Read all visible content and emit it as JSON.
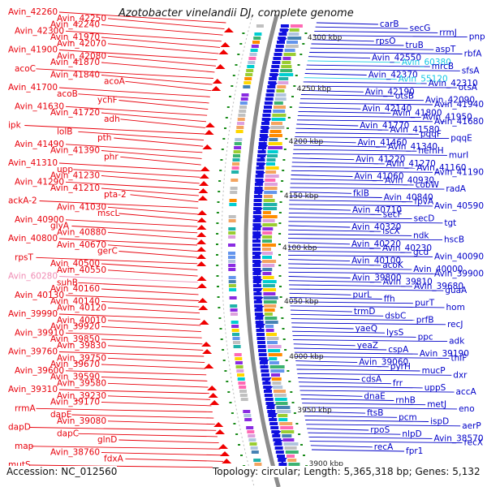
{
  "title": "Azotobacter vinelandii DJ, complete genome",
  "accession_label": "Accession: NC_012560",
  "topology_label": "Topology: circular; Length: 5,365,318 bp; Genes: 5,132",
  "colors": {
    "left_gene_label": "#e8000b",
    "right_gene_label": "#0000c8",
    "highlight_pink": "#f08cb4",
    "highlight_cyan": "#16c8e6",
    "feature_red": "#f00000",
    "feature_blue": "#1010e0",
    "backbone": "#8c8c8c",
    "tick_green": "#1a8c1a"
  },
  "scale_labels": [
    "4300 kbp",
    "4250 kbp",
    "4200 kbp",
    "4150 kbp",
    "4100 kbp",
    "4050 kbp",
    "4000 kbp",
    "3950 kbp",
    "3900 kbp"
  ],
  "left_labels": [
    {
      "text": "Avin_42260",
      "color": "red"
    },
    {
      "text": "Avin_42250",
      "color": "red"
    },
    {
      "text": "Avin_42240",
      "color": "red"
    },
    {
      "text": "Avin_42300",
      "color": "red"
    },
    {
      "text": "Avin_41970",
      "color": "red"
    },
    {
      "text": "Avin_42070",
      "color": "red"
    },
    {
      "text": "Avin_41900",
      "color": "red"
    },
    {
      "text": "Avin_42080",
      "color": "red"
    },
    {
      "text": "Avin_41870",
      "color": "red"
    },
    {
      "text": "acoC",
      "color": "red"
    },
    {
      "text": "Avin_41840",
      "color": "red"
    },
    {
      "text": "acoA",
      "color": "red"
    },
    {
      "text": "Avin_41700",
      "color": "red"
    },
    {
      "text": "acoB",
      "color": "red"
    },
    {
      "text": "ychF",
      "color": "red"
    },
    {
      "text": "Avin_41630",
      "color": "red"
    },
    {
      "text": "Avin_41720",
      "color": "red"
    },
    {
      "text": "adh",
      "color": "red"
    },
    {
      "text": "ipk",
      "color": "red"
    },
    {
      "text": "lolB",
      "color": "red"
    },
    {
      "text": "pth",
      "color": "red"
    },
    {
      "text": "Avin_41490",
      "color": "red"
    },
    {
      "text": "Avin_41390",
      "color": "red"
    },
    {
      "text": "phr",
      "color": "red"
    },
    {
      "text": "Avin_41310",
      "color": "red"
    },
    {
      "text": "upp",
      "color": "red"
    },
    {
      "text": "Avin_41230",
      "color": "red"
    },
    {
      "text": "Avin_41290",
      "color": "red"
    },
    {
      "text": "Avin_41210",
      "color": "red"
    },
    {
      "text": "pta-2",
      "color": "red"
    },
    {
      "text": "ackA-2",
      "color": "red"
    },
    {
      "text": "Avin_41030",
      "color": "red"
    },
    {
      "text": "mscL",
      "color": "red"
    },
    {
      "text": "Avin_40900",
      "color": "red"
    },
    {
      "text": "glyA",
      "color": "red"
    },
    {
      "text": "Avin_40880",
      "color": "red"
    },
    {
      "text": "Avin_40800",
      "color": "red"
    },
    {
      "text": "Avin_40670",
      "color": "red"
    },
    {
      "text": "gerC",
      "color": "red"
    },
    {
      "text": "rpsT",
      "color": "red"
    },
    {
      "text": "Avin_40500",
      "color": "red"
    },
    {
      "text": "Avin_40550",
      "color": "red"
    },
    {
      "text": "Avin_60280",
      "color": "pink"
    },
    {
      "text": "suhB",
      "color": "red"
    },
    {
      "text": "Avin_40160",
      "color": "red"
    },
    {
      "text": "Avin_40130",
      "color": "red"
    },
    {
      "text": "Avin_40140",
      "color": "red"
    },
    {
      "text": "Avin_40120",
      "color": "red"
    },
    {
      "text": "Avin_39990",
      "color": "red"
    },
    {
      "text": "Avin_40010",
      "color": "red"
    },
    {
      "text": "Avin_39920",
      "color": "red"
    },
    {
      "text": "Avin_39910",
      "color": "red"
    },
    {
      "text": "Avin_39850",
      "color": "red"
    },
    {
      "text": "Avin_39830",
      "color": "red"
    },
    {
      "text": "Avin_39760",
      "color": "red"
    },
    {
      "text": "Avin_39750",
      "color": "red"
    },
    {
      "text": "Avin_39670",
      "color": "red"
    },
    {
      "text": "Avin_39600",
      "color": "red"
    },
    {
      "text": "Avin_39590",
      "color": "red"
    },
    {
      "text": "Avin_39580",
      "color": "red"
    },
    {
      "text": "Avin_39310",
      "color": "red"
    },
    {
      "text": "Avin_39230",
      "color": "red"
    },
    {
      "text": "Avin_39170",
      "color": "red"
    },
    {
      "text": "rrmA",
      "color": "red"
    },
    {
      "text": "dapE",
      "color": "red"
    },
    {
      "text": "Avin_39080",
      "color": "red"
    },
    {
      "text": "dapD",
      "color": "red"
    },
    {
      "text": "dapC",
      "color": "red"
    },
    {
      "text": "glnD",
      "color": "red"
    },
    {
      "text": "map",
      "color": "red"
    },
    {
      "text": "Avin_38760",
      "color": "red"
    },
    {
      "text": "fdxA",
      "color": "red"
    },
    {
      "text": "mutS",
      "color": "red"
    }
  ],
  "right_labels": [
    {
      "text": "carB",
      "color": "blue"
    },
    {
      "text": "secG",
      "color": "blue"
    },
    {
      "text": "rrmJ",
      "color": "blue"
    },
    {
      "text": "pnp",
      "color": "blue"
    },
    {
      "text": "rpsO",
      "color": "blue"
    },
    {
      "text": "truB",
      "color": "blue"
    },
    {
      "text": "aspT",
      "color": "blue"
    },
    {
      "text": "rbfA",
      "color": "blue"
    },
    {
      "text": "Avin_42550",
      "color": "blue"
    },
    {
      "text": "Avin_60380",
      "color": "cyan"
    },
    {
      "text": "mrcB",
      "color": "blue"
    },
    {
      "text": "sfsA",
      "color": "blue"
    },
    {
      "text": "Avin_42370",
      "color": "blue"
    },
    {
      "text": "Avin_55120",
      "color": "cyan"
    },
    {
      "text": "Avin_42310",
      "color": "blue"
    },
    {
      "text": "otsA",
      "color": "blue"
    },
    {
      "text": "Avin_42190",
      "color": "blue"
    },
    {
      "text": "otsB",
      "color": "blue"
    },
    {
      "text": "Avin_42090",
      "color": "blue"
    },
    {
      "text": "Avin_41940",
      "color": "blue"
    },
    {
      "text": "Avin_42140",
      "color": "blue"
    },
    {
      "text": "Avin_41800",
      "color": "blue"
    },
    {
      "text": "Avin_41950",
      "color": "blue"
    },
    {
      "text": "Avin_41680",
      "color": "blue"
    },
    {
      "text": "Avin_41770",
      "color": "blue"
    },
    {
      "text": "Avin_41580",
      "color": "blue"
    },
    {
      "text": "pqqF",
      "color": "blue"
    },
    {
      "text": "pqqE",
      "color": "blue"
    },
    {
      "text": "Avin_41460",
      "color": "blue"
    },
    {
      "text": "Avin_41340",
      "color": "blue"
    },
    {
      "text": "hemH",
      "color": "blue"
    },
    {
      "text": "murI",
      "color": "blue"
    },
    {
      "text": "Avin_41220",
      "color": "blue"
    },
    {
      "text": "Avin_41270",
      "color": "blue"
    },
    {
      "text": "Avin_41160",
      "color": "blue"
    },
    {
      "text": "Avin_41190",
      "color": "blue"
    },
    {
      "text": "Avin_41060",
      "color": "blue"
    },
    {
      "text": "Avin_40930",
      "color": "blue"
    },
    {
      "text": "cobW",
      "color": "blue"
    },
    {
      "text": "radA",
      "color": "blue"
    },
    {
      "text": "fklB",
      "color": "blue"
    },
    {
      "text": "Avin_40840",
      "color": "blue"
    },
    {
      "text": "fpvA",
      "color": "blue"
    },
    {
      "text": "Avin_40590",
      "color": "blue"
    },
    {
      "text": "Avin_40710",
      "color": "blue"
    },
    {
      "text": "secF",
      "color": "blue"
    },
    {
      "text": "secD",
      "color": "blue"
    },
    {
      "text": "tgt",
      "color": "blue"
    },
    {
      "text": "Avin_40320",
      "color": "blue"
    },
    {
      "text": "iscX",
      "color": "blue"
    },
    {
      "text": "ndk",
      "color": "blue"
    },
    {
      "text": "hscB",
      "color": "blue"
    },
    {
      "text": "Avin_40220",
      "color": "blue"
    },
    {
      "text": "Avin_40230",
      "color": "blue"
    },
    {
      "text": "gcd",
      "color": "blue"
    },
    {
      "text": "Avin_40090",
      "color": "blue"
    },
    {
      "text": "Avin_40100",
      "color": "blue"
    },
    {
      "text": "acoK",
      "color": "blue"
    },
    {
      "text": "Avin_40000",
      "color": "blue"
    },
    {
      "text": "Avin_39900",
      "color": "blue"
    },
    {
      "text": "Avin_39800",
      "color": "blue"
    },
    {
      "text": "Avin_39810",
      "color": "blue"
    },
    {
      "text": "Avin_39680",
      "color": "blue"
    },
    {
      "text": "guaA",
      "color": "blue"
    },
    {
      "text": "purL",
      "color": "blue"
    },
    {
      "text": "ffh",
      "color": "blue"
    },
    {
      "text": "purT",
      "color": "blue"
    },
    {
      "text": "hom",
      "color": "blue"
    },
    {
      "text": "trmD",
      "color": "blue"
    },
    {
      "text": "dsbC",
      "color": "blue"
    },
    {
      "text": "prfB",
      "color": "blue"
    },
    {
      "text": "recJ",
      "color": "blue"
    },
    {
      "text": "yaeQ",
      "color": "blue"
    },
    {
      "text": "lysS",
      "color": "blue"
    },
    {
      "text": "ppc",
      "color": "blue"
    },
    {
      "text": "adk",
      "color": "blue"
    },
    {
      "text": "yeaZ",
      "color": "blue"
    },
    {
      "text": "cspA",
      "color": "blue"
    },
    {
      "text": "Avin_39190",
      "color": "blue"
    },
    {
      "text": "thiF",
      "color": "blue"
    },
    {
      "text": "Avin_39060",
      "color": "blue"
    },
    {
      "text": "pyrH",
      "color": "blue"
    },
    {
      "text": "mucP",
      "color": "blue"
    },
    {
      "text": "dxr",
      "color": "blue"
    },
    {
      "text": "cdsA",
      "color": "blue"
    },
    {
      "text": "frr",
      "color": "blue"
    },
    {
      "text": "uppS",
      "color": "blue"
    },
    {
      "text": "accA",
      "color": "blue"
    },
    {
      "text": "dnaE",
      "color": "blue"
    },
    {
      "text": "rnhB",
      "color": "blue"
    },
    {
      "text": "metJ",
      "color": "blue"
    },
    {
      "text": "eno",
      "color": "blue"
    },
    {
      "text": "ftsB",
      "color": "blue"
    },
    {
      "text": "pcm",
      "color": "blue"
    },
    {
      "text": "ispD",
      "color": "blue"
    },
    {
      "text": "aerP",
      "color": "blue"
    },
    {
      "text": "rpoS",
      "color": "blue"
    },
    {
      "text": "nlpD",
      "color": "blue"
    },
    {
      "text": "Avin_38570",
      "color": "blue"
    },
    {
      "text": "recX",
      "color": "blue"
    },
    {
      "text": "recA",
      "color": "blue"
    },
    {
      "text": "fpr1",
      "color": "blue"
    }
  ]
}
